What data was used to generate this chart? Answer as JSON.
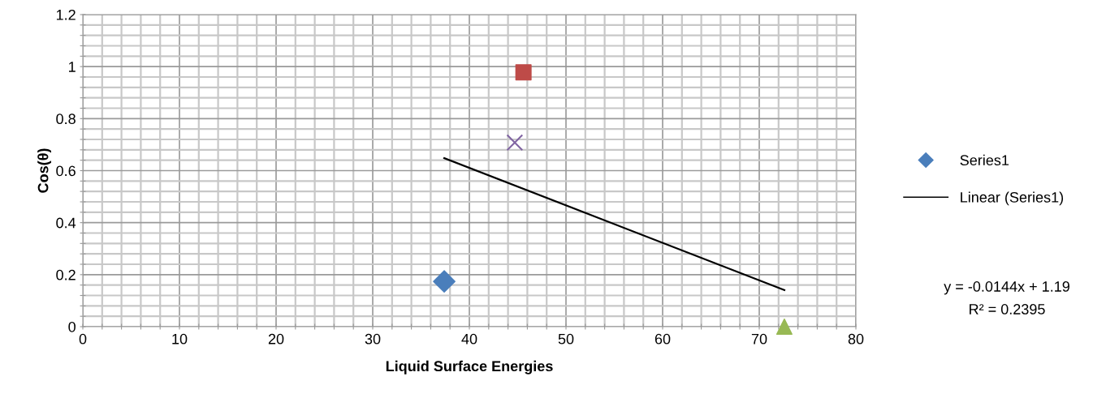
{
  "chart_data": {
    "type": "scatter",
    "xlabel": "Liquid Surface Energies",
    "ylabel": "Cos(θ)",
    "xlim": [
      0,
      80
    ],
    "ylim": [
      0,
      1.2
    ],
    "xticks": [
      0,
      {
        "value": 2,
        "label": null
      },
      {
        "value": 4,
        "label": null
      },
      {
        "value": 6,
        "label": null
      },
      {
        "value": 8,
        "label": null
      },
      10,
      {
        "value": 12,
        "label": null
      },
      {
        "value": 14,
        "label": null
      },
      {
        "value": 16,
        "label": null
      },
      {
        "value": 18,
        "label": null
      },
      20,
      {
        "value": 22,
        "label": null
      },
      {
        "value": 24,
        "label": null
      },
      {
        "value": 26,
        "label": null
      },
      {
        "value": 28,
        "label": null
      },
      30,
      {
        "value": 32,
        "label": null
      },
      {
        "value": 34,
        "label": null
      },
      {
        "value": 36,
        "label": null
      },
      {
        "value": 38,
        "label": null
      },
      40,
      {
        "value": 42,
        "label": null
      },
      {
        "value": 44,
        "label": null
      },
      {
        "value": 46,
        "label": null
      },
      {
        "value": 48,
        "label": null
      },
      50,
      {
        "value": 52,
        "label": null
      },
      {
        "value": 54,
        "label": null
      },
      {
        "value": 56,
        "label": null
      },
      {
        "value": 58,
        "label": null
      },
      60,
      {
        "value": 62,
        "label": null
      },
      {
        "value": 64,
        "label": null
      },
      {
        "value": 66,
        "label": null
      },
      {
        "value": 68,
        "label": null
      },
      70,
      {
        "value": 72,
        "label": null
      },
      {
        "value": 74,
        "label": null
      },
      {
        "value": 76,
        "label": null
      },
      {
        "value": 78,
        "label": null
      },
      80
    ],
    "yticks": [
      0,
      {
        "value": 0.04,
        "label": null
      },
      {
        "value": 0.08,
        "label": null
      },
      {
        "value": 0.12,
        "label": null
      },
      {
        "value": 0.16,
        "label": null
      },
      0.2,
      {
        "value": 0.24,
        "label": null
      },
      {
        "value": 0.28,
        "label": null
      },
      {
        "value": 0.32,
        "label": null
      },
      {
        "value": 0.36,
        "label": null
      },
      0.4,
      {
        "value": 0.44,
        "label": null
      },
      {
        "value": 0.48,
        "label": null
      },
      {
        "value": 0.52,
        "label": null
      },
      {
        "value": 0.56,
        "label": null
      },
      0.6,
      {
        "value": 0.64,
        "label": null
      },
      {
        "value": 0.68,
        "label": null
      },
      {
        "value": 0.72,
        "label": null
      },
      {
        "value": 0.76,
        "label": null
      },
      0.8,
      {
        "value": 0.84,
        "label": null
      },
      {
        "value": 0.88,
        "label": null
      },
      {
        "value": 0.92,
        "label": null
      },
      {
        "value": 0.96,
        "label": null
      },
      1,
      {
        "value": 1.04,
        "label": null
      },
      {
        "value": 1.08,
        "label": null
      },
      {
        "value": 1.12,
        "label": null
      },
      {
        "value": 1.16,
        "label": null
      },
      1.2
    ],
    "grid": true,
    "legend": "right",
    "series": [
      {
        "name": "Series1",
        "x": [
          37.4,
          45.6,
          44.7,
          72.6
        ],
        "values": [
          0.174,
          0.978,
          0.708,
          0.0
        ],
        "color": "#4a7ebb",
        "colors": [
          "#4a7ebb",
          "#be4b48",
          "#8064a2",
          "#98b954"
        ],
        "marker": [
          "diamond",
          "square",
          "cross",
          "triangle"
        ]
      },
      {
        "name": "Linear (Series1)",
        "type": "line",
        "x": [
          37.4,
          72.6
        ],
        "values": [
          0.648,
          0.141
        ],
        "color": "#000000",
        "marker": "none",
        "line_style": "solid"
      }
    ],
    "annotations": [
      "y = -0.0144x + 1.19",
      "R² = 0.2395"
    ]
  }
}
